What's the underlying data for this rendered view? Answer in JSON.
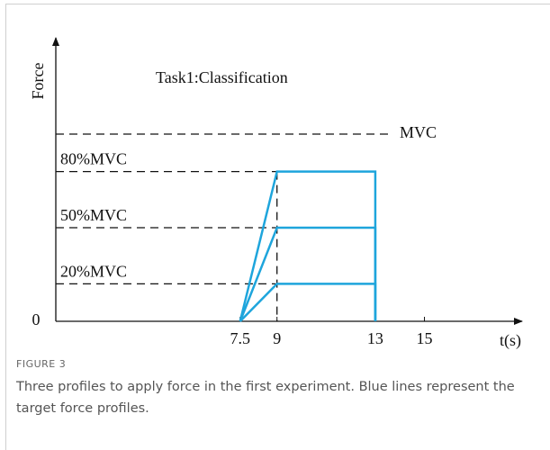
{
  "chart_data": {
    "type": "line",
    "title": "Task1:Classification",
    "x_label": "t(s)",
    "y_label": "Force",
    "series": [
      {
        "x": [
          7.5,
          9,
          13,
          13
        ],
        "values": [
          0,
          80,
          80,
          0
        ],
        "color": "#1ea5dc"
      },
      {
        "x": [
          7.5,
          9,
          13,
          13
        ],
        "values": [
          0,
          50,
          50,
          0
        ],
        "color": "#1ea5dc"
      },
      {
        "x": [
          7.5,
          9,
          13,
          13
        ],
        "values": [
          0,
          20,
          20,
          0
        ],
        "color": "#1ea5dc"
      }
    ],
    "reference_lines": [
      {
        "label": "MVC",
        "value": 100
      }
    ],
    "xlim": [
      0,
      18.9
    ],
    "ylim": [
      0,
      150
    ],
    "xticks": [
      7.5,
      9,
      13,
      15
    ],
    "yticks": [
      0,
      {
        "value": 20,
        "label": "20%MVC"
      },
      {
        "value": 50,
        "label": "50%MVC"
      },
      {
        "value": 80,
        "label": "80%MVC"
      }
    ]
  },
  "figure": {
    "label": "FIGURE 3",
    "caption": "Three profiles to apply force in the first experiment. Blue lines represent the target force profiles."
  }
}
